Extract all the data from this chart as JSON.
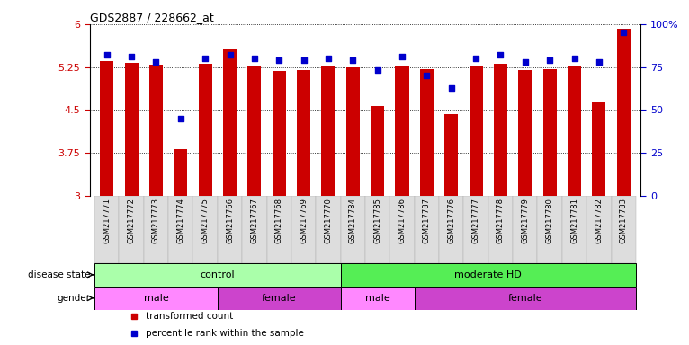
{
  "title": "GDS2887 / 228662_at",
  "samples": [
    "GSM217771",
    "GSM217772",
    "GSM217773",
    "GSM217774",
    "GSM217775",
    "GSM217766",
    "GSM217767",
    "GSM217768",
    "GSM217769",
    "GSM217770",
    "GSM217784",
    "GSM217785",
    "GSM217786",
    "GSM217787",
    "GSM217776",
    "GSM217777",
    "GSM217778",
    "GSM217779",
    "GSM217780",
    "GSM217781",
    "GSM217782",
    "GSM217783"
  ],
  "bar_values": [
    5.35,
    5.33,
    5.29,
    3.82,
    5.31,
    5.58,
    5.27,
    5.18,
    5.19,
    5.26,
    5.25,
    4.57,
    5.28,
    5.22,
    4.43,
    5.26,
    5.31,
    5.19,
    5.21,
    5.26,
    4.65,
    5.92
  ],
  "percentile_values": [
    82,
    81,
    78,
    45,
    80,
    82,
    80,
    79,
    79,
    80,
    79,
    73,
    81,
    70,
    63,
    80,
    82,
    78,
    79,
    80,
    78,
    95
  ],
  "ylim_left": [
    3,
    6
  ],
  "ylim_right": [
    0,
    100
  ],
  "yticks_left": [
    3,
    3.75,
    4.5,
    5.25,
    6
  ],
  "ytick_labels_left": [
    "3",
    "3.75",
    "4.5",
    "5.25",
    "6"
  ],
  "yticks_right": [
    0,
    25,
    50,
    75,
    100
  ],
  "ytick_labels_right": [
    "0",
    "25",
    "50",
    "75",
    "100%"
  ],
  "bar_color": "#CC0000",
  "dot_color": "#0000CC",
  "tick_bg_color": "#DDDDDD",
  "disease_state_groups": [
    {
      "label": "control",
      "start": 0,
      "end": 10,
      "color": "#AAFFAA"
    },
    {
      "label": "moderate HD",
      "start": 10,
      "end": 22,
      "color": "#55EE55"
    }
  ],
  "gender_groups": [
    {
      "label": "male",
      "start": 0,
      "end": 5,
      "color": "#FF88FF"
    },
    {
      "label": "female",
      "start": 5,
      "end": 10,
      "color": "#CC44CC"
    },
    {
      "label": "male",
      "start": 10,
      "end": 13,
      "color": "#FF88FF"
    },
    {
      "label": "female",
      "start": 13,
      "end": 22,
      "color": "#CC44CC"
    }
  ],
  "legend_items": [
    {
      "label": "transformed count",
      "color": "#CC0000"
    },
    {
      "label": "percentile rank within the sample",
      "color": "#0000CC"
    }
  ],
  "disease_label": "disease state",
  "gender_label": "gender",
  "bg_color": "#FFFFFF"
}
